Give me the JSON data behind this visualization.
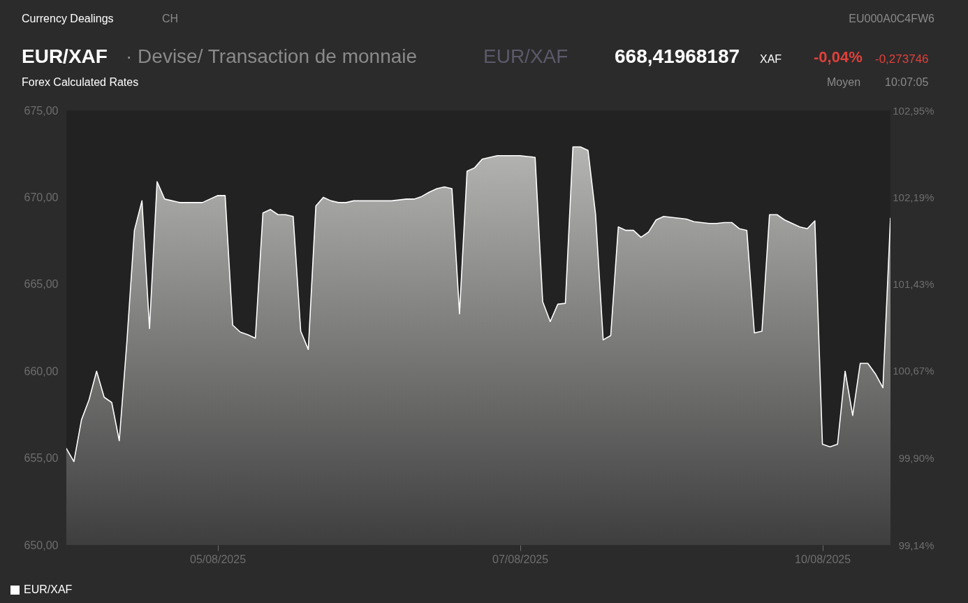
{
  "chart_data": {
    "type": "area",
    "title": "EUR/XAF",
    "subtitle": "· Devise/ Transaction de monnaie",
    "annotations": [
      "Currency Dealings",
      "CH",
      "EU000A0C4FW6",
      "EUR/XAF",
      "668,41968187",
      "XAF",
      "-0,04%",
      "-0,273746",
      "Forex Calculated Rates",
      "Moyen",
      "10:07:05"
    ],
    "categories": [
      null,
      null,
      null,
      null,
      null,
      null,
      null,
      null,
      null,
      null,
      null,
      null,
      null,
      null,
      null,
      null,
      null,
      null,
      null,
      null,
      "05/08/2025",
      null,
      null,
      null,
      null,
      null,
      null,
      null,
      null,
      null,
      null,
      null,
      null,
      null,
      null,
      null,
      null,
      null,
      null,
      null,
      null,
      null,
      null,
      null,
      null,
      null,
      null,
      null,
      null,
      null,
      null,
      null,
      null,
      null,
      null,
      null,
      null,
      null,
      null,
      null,
      "07/08/2025",
      null,
      null,
      null,
      null,
      null,
      null,
      null,
      null,
      null,
      null,
      null,
      null,
      null,
      null,
      null,
      null,
      null,
      null,
      null,
      null,
      null,
      null,
      null,
      null,
      null,
      null,
      null,
      null,
      null,
      null,
      null,
      null,
      null,
      null,
      null,
      null,
      null,
      null,
      null,
      "10/08/2025",
      null,
      null,
      null,
      null,
      null,
      null,
      null,
      null,
      null
    ],
    "series": [
      {
        "name": "EUR/XAF",
        "color": "#ffffff",
        "values": [
          655.55,
          654.8,
          657.2,
          658.35,
          660.0,
          658.5,
          658.2,
          656.0,
          661.65,
          668.1,
          669.8,
          662.45,
          670.9,
          669.9,
          669.8,
          669.7,
          669.7,
          669.7,
          669.7,
          669.9,
          670.1,
          670.1,
          662.65,
          662.25,
          662.1,
          661.9,
          669.1,
          669.3,
          669.0,
          669.0,
          668.9,
          662.3,
          661.25,
          669.5,
          670.0,
          669.8,
          669.7,
          669.7,
          669.8,
          669.8,
          669.8,
          669.8,
          669.8,
          669.8,
          669.85,
          669.9,
          669.9,
          670.05,
          670.3,
          670.5,
          670.6,
          670.5,
          663.3,
          671.5,
          671.7,
          672.2,
          672.3,
          672.4,
          672.4,
          672.4,
          672.4,
          672.35,
          672.3,
          664.0,
          662.85,
          663.85,
          663.9,
          672.9,
          672.9,
          672.7,
          669.0,
          661.8,
          662.05,
          668.3,
          668.1,
          668.1,
          667.7,
          668.0,
          668.7,
          668.9,
          668.85,
          668.8,
          668.75,
          668.6,
          668.55,
          668.5,
          668.5,
          668.55,
          668.55,
          668.2,
          668.1,
          662.2,
          662.3,
          669.0,
          669.0,
          668.7,
          668.5,
          668.3,
          668.2,
          668.65,
          655.8,
          655.65,
          655.8,
          660.0,
          657.45,
          660.45,
          660.45,
          659.85,
          659.05,
          668.8
        ]
      }
    ],
    "ylim": [
      650,
      675
    ],
    "yticks": [
      {
        "value": 650,
        "label": "650,00"
      },
      {
        "value": 655,
        "label": "655,00"
      },
      {
        "value": 660,
        "label": "660,00"
      },
      {
        "value": 665,
        "label": "665,00"
      },
      {
        "value": 670,
        "label": "670,00"
      },
      {
        "value": 675,
        "label": "675,00"
      }
    ],
    "y2lim": [
      99.14,
      102.95
    ],
    "y2ticks": [
      {
        "value": 99.14,
        "label": "99,14%"
      },
      {
        "value": 99.9,
        "label": "99,90%"
      },
      {
        "value": 100.67,
        "label": "100,67%"
      },
      {
        "value": 101.43,
        "label": "101,43%"
      },
      {
        "value": 102.19,
        "label": "102,19%"
      },
      {
        "value": 102.95,
        "label": "102,95%"
      }
    ],
    "legend": "bottom left",
    "grid": false
  }
}
